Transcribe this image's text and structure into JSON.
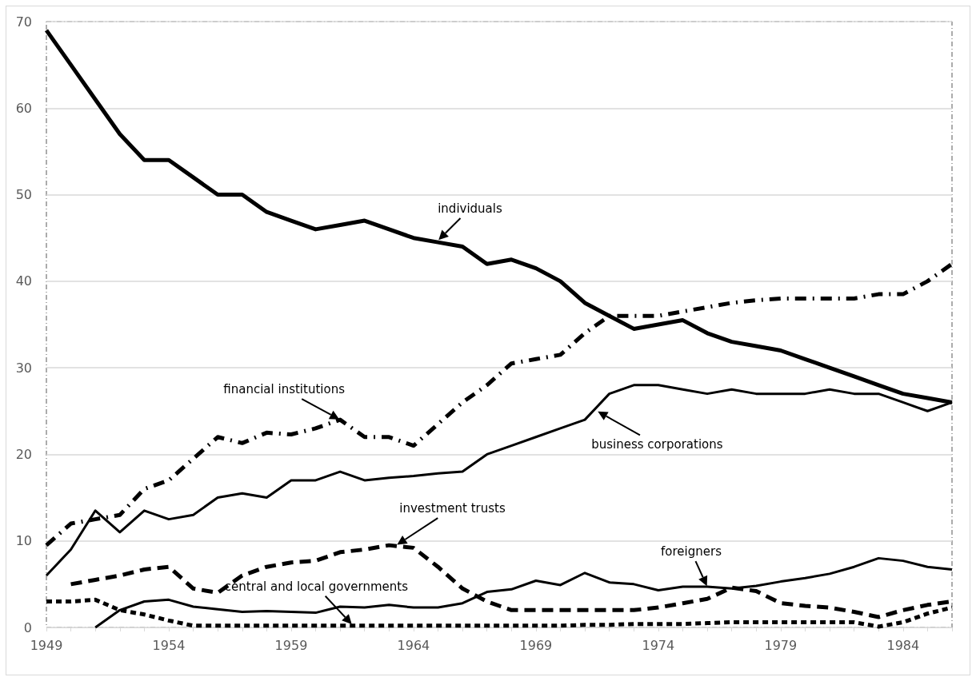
{
  "chart_data": {
    "type": "line",
    "x": [
      1949,
      1950,
      1951,
      1952,
      1953,
      1954,
      1955,
      1956,
      1957,
      1958,
      1959,
      1960,
      1961,
      1962,
      1963,
      1964,
      1965,
      1966,
      1967,
      1968,
      1969,
      1970,
      1971,
      1972,
      1973,
      1974,
      1975,
      1976,
      1977,
      1978,
      1979,
      1980,
      1981,
      1982,
      1983,
      1984,
      1985,
      1986
    ],
    "xlim": [
      1949,
      1986
    ],
    "xticks": [
      1949,
      {
        "value": 1950,
        "label": null
      },
      {
        "value": 1951,
        "label": null
      },
      {
        "value": 1952,
        "label": null
      },
      {
        "value": 1953,
        "label": null
      },
      1954,
      {
        "value": 1955,
        "label": null
      },
      {
        "value": 1956,
        "label": null
      },
      {
        "value": 1957,
        "label": null
      },
      {
        "value": 1958,
        "label": null
      },
      1959,
      {
        "value": 1960,
        "label": null
      },
      {
        "value": 1961,
        "label": null
      },
      {
        "value": 1962,
        "label": null
      },
      {
        "value": 1963,
        "label": null
      },
      1964,
      {
        "value": 1965,
        "label": null
      },
      {
        "value": 1966,
        "label": null
      },
      {
        "value": 1967,
        "label": null
      },
      {
        "value": 1968,
        "label": null
      },
      1969,
      {
        "value": 1970,
        "label": null
      },
      {
        "value": 1971,
        "label": null
      },
      {
        "value": 1972,
        "label": null
      },
      {
        "value": 1973,
        "label": null
      },
      1974,
      {
        "value": 1975,
        "label": null
      },
      {
        "value": 1976,
        "label": null
      },
      {
        "value": 1977,
        "label": null
      },
      {
        "value": 1978,
        "label": null
      },
      1979,
      {
        "value": 1980,
        "label": null
      },
      {
        "value": 1981,
        "label": null
      },
      {
        "value": 1982,
        "label": null
      },
      {
        "value": 1983,
        "label": null
      },
      1984,
      {
        "value": 1985,
        "label": null
      },
      {
        "value": 1986,
        "label": null
      }
    ],
    "ylim": [
      0,
      70
    ],
    "yticks": [
      0,
      10,
      20,
      30,
      40,
      50,
      60,
      70
    ],
    "grid": "y",
    "marker": "none",
    "series": [
      {
        "color": "#000000",
        "line_style": "solid",
        "values": [
          69,
          65,
          61,
          57,
          54,
          54,
          52,
          50,
          50,
          48,
          47,
          46,
          46.5,
          47,
          46,
          45,
          44.5,
          44,
          42,
          42.5,
          41.5,
          40,
          37.5,
          36,
          34.5,
          35,
          35.5,
          34,
          33,
          32.5,
          32,
          31,
          30,
          29,
          28,
          27,
          26.5,
          26
        ]
      },
      {
        "color": "#000000",
        "line_style": "dashdot",
        "values": [
          9.5,
          12,
          12.5,
          13,
          16,
          17,
          19.5,
          22,
          21.3,
          22.5,
          22.3,
          23,
          24,
          22,
          22,
          21,
          23.5,
          26,
          28,
          30.5,
          31,
          31.5,
          34,
          36,
          36,
          36,
          36.5,
          37,
          37.5,
          37.8,
          38,
          38,
          38,
          38,
          38.5,
          38.5,
          40,
          42
        ]
      },
      {
        "color": "#000000",
        "line_style": "solid",
        "values": [
          6,
          9,
          13.5,
          11,
          13.5,
          12.5,
          13,
          15,
          15.5,
          15,
          17,
          17,
          18,
          17,
          17.3,
          17.5,
          17.8,
          18,
          20,
          21,
          22,
          23,
          24,
          27,
          28,
          28,
          27.5,
          27,
          27.5,
          27,
          27,
          27,
          27.5,
          27,
          27,
          26,
          25,
          26
        ]
      },
      {
        "color": "#000000",
        "line_style": "dashed",
        "values": [
          null,
          5,
          5.5,
          6,
          6.7,
          7,
          4.5,
          4,
          6,
          7,
          7.5,
          7.7,
          8.7,
          9,
          9.5,
          9.2,
          7,
          4.5,
          3,
          2,
          2,
          2,
          2,
          2,
          2,
          2.3,
          2.8,
          3.3,
          4.6,
          4.2,
          2.8,
          2.5,
          2.3,
          1.8,
          1.2,
          2,
          2.6,
          3
        ]
      },
      {
        "color": "#000000",
        "line_style": "solid",
        "values": [
          null,
          null,
          0,
          2,
          3,
          3.2,
          2.4,
          2.1,
          1.8,
          1.9,
          1.8,
          1.7,
          2.4,
          2.3,
          2.6,
          2.3,
          2.3,
          2.8,
          4.1,
          4.4,
          5.4,
          4.9,
          6.3,
          5.2,
          5,
          4.3,
          4.7,
          4.7,
          4.5,
          4.8,
          5.3,
          5.7,
          6.2,
          7,
          8,
          7.7,
          7,
          6.7
        ]
      },
      {
        "color": "#000000",
        "line_style": "dotted",
        "values": [
          3,
          3,
          3.2,
          2,
          1.5,
          0.8,
          0.2,
          0.2,
          0.2,
          0.2,
          0.2,
          0.2,
          0.2,
          0.2,
          0.2,
          0.2,
          0.2,
          0.2,
          0.2,
          0.2,
          0.2,
          0.2,
          0.3,
          0.3,
          0.4,
          0.4,
          0.4,
          0.5,
          0.6,
          0.6,
          0.6,
          0.6,
          0.6,
          0.6,
          0.1,
          0.6,
          1.6,
          2.3
        ]
      }
    ],
    "annotations": [
      {
        "text": "individuals",
        "x": 1965,
        "y": 44.7
      },
      {
        "text": "financial institutions",
        "x": 1961,
        "y": 24
      },
      {
        "text": "business corporations",
        "x": 1971.5,
        "y": 25
      },
      {
        "text": "investment trusts",
        "x": 1963.3,
        "y": 9.5
      },
      {
        "text": "foreigners",
        "x": 1976,
        "y": 4.7
      },
      {
        "text": "central and local governments",
        "x": 1961.5,
        "y": 0.3
      }
    ]
  }
}
